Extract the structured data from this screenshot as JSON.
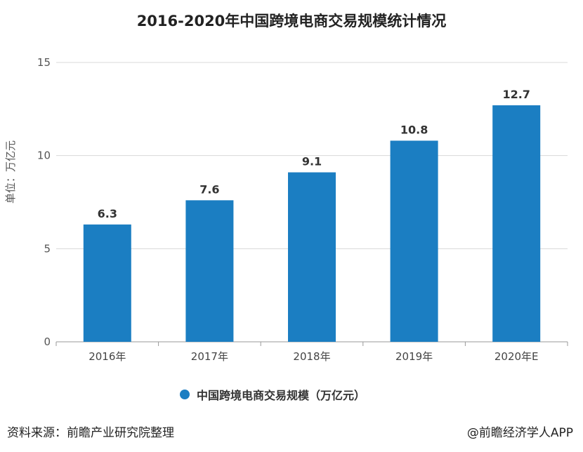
{
  "title": "2016-2020年中国跨境电商交易规模统计情况",
  "ylabel": "单位：万亿元",
  "legend_label": "中国跨境电商交易规模（万亿元）",
  "source": "资料来源：前瞻产业研究院整理",
  "attribution": "@前瞻经济学人APP",
  "colors": {
    "bar": "#1b7ec2",
    "grid": "#d8d8d8",
    "axis": "#999999"
  },
  "chart_data": {
    "type": "bar",
    "title": "2016-2020年中国跨境电商交易规模统计情况",
    "xlabel": "",
    "ylabel": "单位：万亿元",
    "categories": [
      "2016年",
      "2017年",
      "2018年",
      "2019年",
      "2020年E"
    ],
    "series": [
      {
        "name": "中国跨境电商交易规模（万亿元）",
        "values": [
          6.3,
          7.6,
          9.1,
          10.8,
          12.7
        ]
      }
    ],
    "ylim": [
      0,
      15
    ],
    "yticks": [
      0,
      5,
      10,
      15
    ],
    "grid": true,
    "legend": "bottom"
  }
}
